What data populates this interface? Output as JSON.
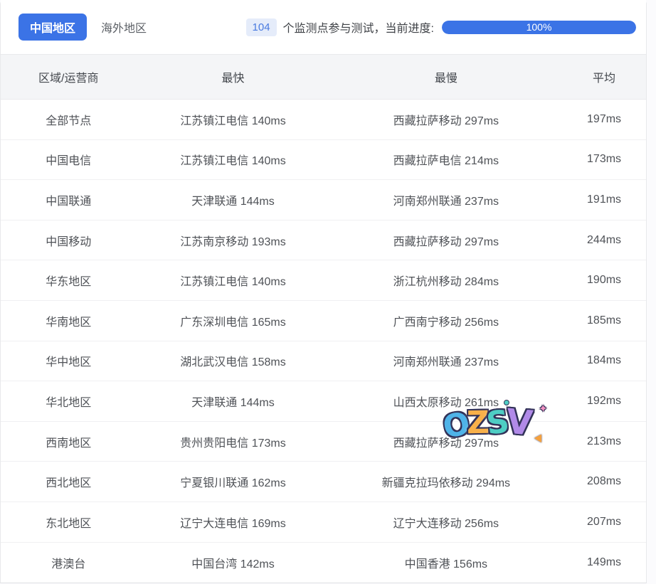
{
  "colors": {
    "accent": "#3b73e6",
    "badge_bg": "#e5ecfa",
    "badge_text": "#4a7be0",
    "header_bg": "#f4f5f7",
    "row_text": "#4f5257"
  },
  "tabs": [
    {
      "label": "中国地区",
      "active": true
    },
    {
      "label": "海外地区",
      "active": false
    }
  ],
  "status": {
    "count": "104",
    "text": "个监测点参与测试，当前进度:",
    "progress_label": "100%",
    "progress_percent": 100
  },
  "table": {
    "headers": [
      "区域/运营商",
      "最快",
      "最慢",
      "平均"
    ],
    "rows": [
      {
        "region": "全部节点",
        "fastest": "江苏镇江电信 140ms",
        "slowest": "西藏拉萨移动 297ms",
        "average": "197ms"
      },
      {
        "region": "中国电信",
        "fastest": "江苏镇江电信 140ms",
        "slowest": "西藏拉萨电信 214ms",
        "average": "173ms"
      },
      {
        "region": "中国联通",
        "fastest": "天津联通 144ms",
        "slowest": "河南郑州联通 237ms",
        "average": "191ms"
      },
      {
        "region": "中国移动",
        "fastest": "江苏南京移动 193ms",
        "slowest": "西藏拉萨移动 297ms",
        "average": "244ms"
      },
      {
        "region": "华东地区",
        "fastest": "江苏镇江电信 140ms",
        "slowest": "浙江杭州移动 284ms",
        "average": "190ms"
      },
      {
        "region": "华南地区",
        "fastest": "广东深圳电信 165ms",
        "slowest": "广西南宁移动 256ms",
        "average": "185ms"
      },
      {
        "region": "华中地区",
        "fastest": "湖北武汉电信 158ms",
        "slowest": "河南郑州联通 237ms",
        "average": "184ms"
      },
      {
        "region": "华北地区",
        "fastest": "天津联通 144ms",
        "slowest": "山西太原移动 261ms",
        "average": "192ms"
      },
      {
        "region": "西南地区",
        "fastest": "贵州贵阳电信 173ms",
        "slowest": "西藏拉萨移动 297ms",
        "average": "213ms"
      },
      {
        "region": "西北地区",
        "fastest": "宁夏银川联通 162ms",
        "slowest": "新疆克拉玛依移动 294ms",
        "average": "208ms"
      },
      {
        "region": "东北地区",
        "fastest": "辽宁大连电信 169ms",
        "slowest": "辽宁大连移动 256ms",
        "average": "207ms"
      },
      {
        "region": "港澳台",
        "fastest": "中国台湾 142ms",
        "slowest": "中国香港 156ms",
        "average": "149ms"
      }
    ]
  },
  "watermark": {
    "letters": [
      {
        "char": "O",
        "color": "#4fb3e8"
      },
      {
        "char": "Z",
        "color": "#f8b04a"
      },
      {
        "char": "S",
        "color": "#4ecdc4"
      },
      {
        "char": "V",
        "color": "#b18ae8"
      }
    ]
  }
}
